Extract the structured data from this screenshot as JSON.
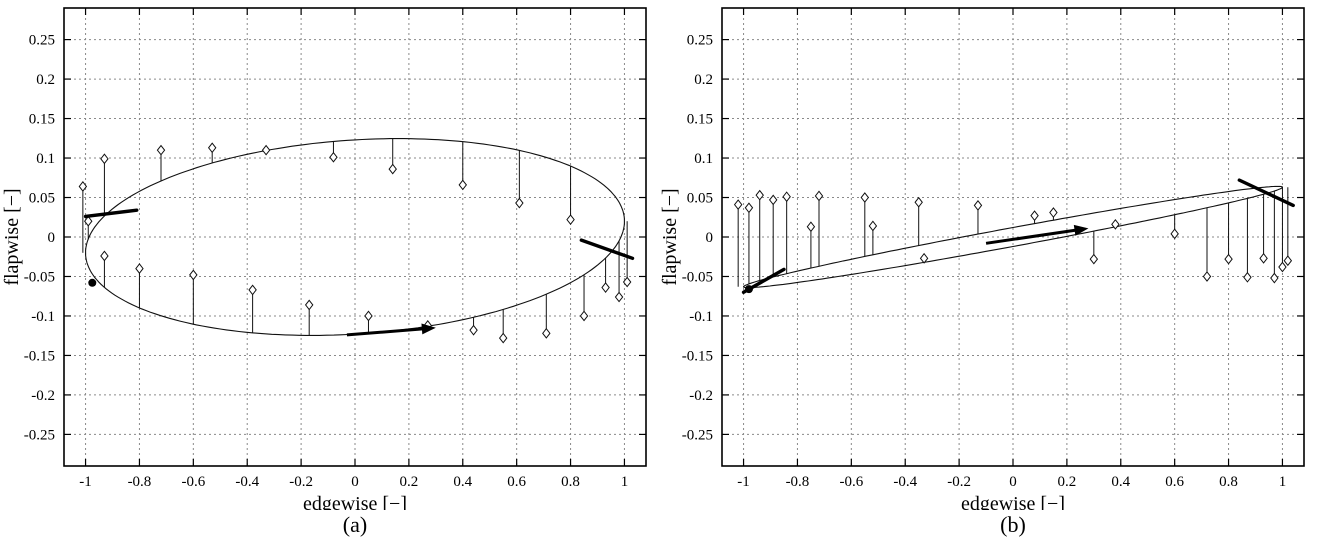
{
  "figure": {
    "background": "#ffffff",
    "colors": {
      "axis": "#000000",
      "grid": "#8a8a8a",
      "curve": "#111111",
      "marker_fill": "#ffffff"
    }
  },
  "chart_data": [
    {
      "type": "scatter",
      "caption": "(a)",
      "xlabel": "edgewise [−]",
      "ylabel": "flapwise [−]",
      "xlim": [
        -1.08,
        1.08
      ],
      "ylim": [
        -0.29,
        0.29
      ],
      "xticks": [
        -1,
        -0.8,
        -0.6,
        -0.4,
        -0.2,
        0,
        0.2,
        0.4,
        0.6,
        0.8,
        1
      ],
      "yticks": [
        -0.25,
        -0.2,
        -0.15,
        -0.1,
        -0.05,
        0,
        0.05,
        0.1,
        0.15,
        0.2,
        0.25
      ],
      "grid": true,
      "orbit": {
        "x_semi_axis": 1.0,
        "tilt_slope": 0.02,
        "half_thickness": 0.123
      },
      "stems": [
        [
          -1.01,
          0.064
        ],
        [
          -0.93,
          0.099
        ],
        [
          -0.72,
          0.11
        ],
        [
          -0.53,
          0.113
        ],
        [
          -0.33,
          0.11
        ],
        [
          -0.08,
          0.101
        ],
        [
          0.14,
          0.086
        ],
        [
          0.4,
          0.066
        ],
        [
          0.61,
          0.043
        ],
        [
          0.8,
          0.022
        ],
        [
          -0.99,
          0.02
        ],
        [
          -0.93,
          -0.024
        ],
        [
          -0.8,
          -0.04
        ],
        [
          -0.6,
          -0.048
        ],
        [
          -0.38,
          -0.067
        ],
        [
          -0.17,
          -0.086
        ],
        [
          0.05,
          -0.1
        ],
        [
          0.27,
          -0.112
        ],
        [
          0.44,
          -0.118
        ],
        [
          0.55,
          -0.128
        ],
        [
          0.71,
          -0.122
        ],
        [
          0.85,
          -0.1
        ],
        [
          0.93,
          -0.064
        ],
        [
          0.98,
          -0.076
        ],
        [
          1.01,
          -0.057
        ]
      ],
      "bold_segments": [
        [
          -1.0,
          0.026,
          -0.81,
          0.034
        ],
        [
          0.84,
          -0.004,
          1.03,
          -0.027
        ]
      ],
      "arrow": {
        "from": [
          -0.03,
          -0.124
        ],
        "to": [
          0.3,
          -0.115
        ]
      },
      "start_point": [
        -0.975,
        -0.058
      ]
    },
    {
      "type": "scatter",
      "caption": "(b)",
      "xlabel": "edgewise [−]",
      "ylabel": "flapwise [−]",
      "xlim": [
        -1.08,
        1.08
      ],
      "ylim": [
        -0.29,
        0.29
      ],
      "xticks": [
        -1,
        -0.8,
        -0.6,
        -0.4,
        -0.2,
        0,
        0.2,
        0.4,
        0.6,
        0.8,
        1
      ],
      "yticks": [
        -0.25,
        -0.2,
        -0.15,
        -0.1,
        -0.05,
        0,
        0.05,
        0.1,
        0.15,
        0.2,
        0.25
      ],
      "grid": true,
      "orbit": {
        "x_semi_axis": 1.0,
        "tilt_slope": 0.063,
        "half_thickness": 0.012
      },
      "stems": [
        [
          -1.02,
          0.041
        ],
        [
          -0.98,
          0.037
        ],
        [
          -0.94,
          0.053
        ],
        [
          -0.89,
          0.047
        ],
        [
          -0.84,
          0.051
        ],
        [
          -0.75,
          0.013
        ],
        [
          -0.72,
          0.052
        ],
        [
          -0.55,
          0.05
        ],
        [
          -0.52,
          0.014
        ],
        [
          -0.35,
          0.044
        ],
        [
          -0.33,
          -0.027
        ],
        [
          -0.13,
          0.04
        ],
        [
          0.08,
          0.027
        ],
        [
          0.15,
          0.031
        ],
        [
          0.3,
          -0.028
        ],
        [
          0.38,
          0.016
        ],
        [
          0.6,
          0.004
        ],
        [
          0.72,
          -0.05
        ],
        [
          0.8,
          -0.028
        ],
        [
          0.87,
          -0.051
        ],
        [
          0.93,
          -0.027
        ],
        [
          0.97,
          -0.052
        ],
        [
          1.0,
          -0.038
        ],
        [
          1.02,
          -0.03
        ]
      ],
      "bold_segments": [
        [
          -1.0,
          -0.07,
          -0.85,
          -0.041
        ],
        [
          0.84,
          0.072,
          1.04,
          0.04
        ]
      ],
      "arrow": {
        "from": [
          -0.1,
          -0.008
        ],
        "to": [
          0.28,
          0.011
        ]
      },
      "start_point": [
        -0.98,
        -0.066
      ]
    }
  ]
}
